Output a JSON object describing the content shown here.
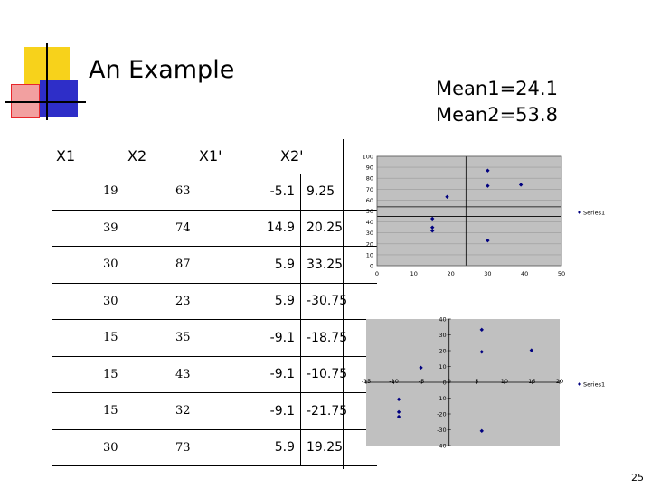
{
  "slide": {
    "title": "An Example",
    "mean1": "Mean1=24.1",
    "mean2": "Mean2=53.8",
    "page_number": "25"
  },
  "table": {
    "headers": [
      "X1",
      "X2",
      "X1'",
      "X2'"
    ],
    "rows": [
      [
        "19",
        "63",
        "-5.1",
        "9.25"
      ],
      [
        "39",
        "74",
        "14.9",
        "20.25"
      ],
      [
        "30",
        "87",
        "5.9",
        "33.25"
      ],
      [
        "30",
        "23",
        "5.9",
        "-30.75"
      ],
      [
        "15",
        "35",
        "-9.1",
        "-18.75"
      ],
      [
        "15",
        "43",
        "-9.1",
        "-10.75"
      ],
      [
        "15",
        "32",
        "-9.1",
        "-21.75"
      ],
      [
        "30",
        "73",
        "5.9",
        "19.25"
      ]
    ]
  },
  "colors": {
    "logo_yellow": "#f7d21b",
    "logo_red": "#e8262b",
    "logo_blue": "#2e2ec8",
    "plot_bg": "#c0c0c0",
    "marker": "#000080"
  },
  "chart_data": [
    {
      "type": "scatter",
      "series": [
        {
          "name": "Series1",
          "x": [
            15,
            15,
            15,
            19,
            30,
            30,
            30,
            39
          ],
          "y": [
            43,
            35,
            32,
            63,
            87,
            73,
            23,
            74
          ]
        }
      ],
      "xticks": [
        "0",
        "10",
        "20",
        "30",
        "40",
        "50"
      ],
      "yticks": [
        "0",
        "10",
        "20",
        "30",
        "40",
        "50",
        "60",
        "70",
        "80",
        "90",
        "100"
      ],
      "xlim": [
        0,
        50
      ],
      "ylim": [
        0,
        100
      ],
      "hlines": [
        45,
        53.8
      ],
      "vlines": [
        24.1
      ],
      "grid": true,
      "legend": "right"
    },
    {
      "type": "scatter",
      "series": [
        {
          "name": "Series1",
          "x": [
            -9.1,
            -9.1,
            -9.1,
            -5.1,
            5.9,
            5.9,
            5.9,
            14.9
          ],
          "y": [
            -10.75,
            -18.75,
            -21.75,
            9.25,
            33.25,
            19.25,
            -30.75,
            20.25
          ]
        }
      ],
      "xticks": [
        "-15",
        "-10",
        "-5",
        "0",
        "5",
        "10",
        "15",
        "20"
      ],
      "yticks": [
        "40",
        "30",
        "20",
        "10",
        "0",
        "-10",
        "-20",
        "-30",
        "-40"
      ],
      "xlim": [
        -15,
        20
      ],
      "ylim": [
        -40,
        40
      ],
      "grid": false,
      "legend": "right"
    }
  ]
}
